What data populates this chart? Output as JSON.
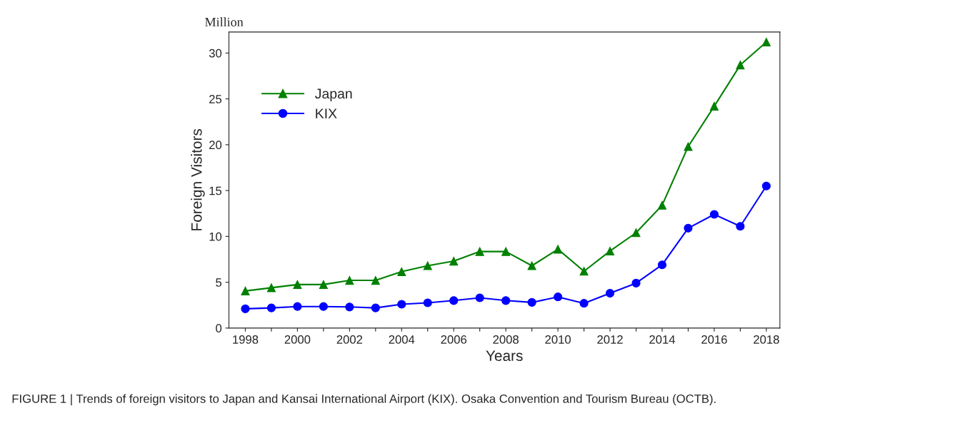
{
  "chart_data": {
    "type": "line",
    "xlabel": "Years",
    "ylabel": "Foreign Visitors",
    "x": [
      1998,
      1999,
      2000,
      2001,
      2002,
      2003,
      2004,
      2005,
      2006,
      2007,
      2008,
      2009,
      2010,
      2011,
      2012,
      2013,
      2014,
      2015,
      2016,
      2017,
      2018
    ],
    "series": [
      {
        "name": "Japan",
        "color": "#008000",
        "marker": "triangle",
        "values": [
          4.05,
          4.4,
          4.75,
          4.75,
          5.2,
          5.2,
          6.15,
          6.8,
          7.3,
          8.35,
          8.35,
          6.8,
          8.6,
          6.2,
          8.4,
          10.4,
          13.4,
          19.8,
          24.2,
          28.7,
          31.2
        ]
      },
      {
        "name": "KIX",
        "color": "#0000ff",
        "marker": "circle",
        "values": [
          2.1,
          2.2,
          2.35,
          2.35,
          2.3,
          2.2,
          2.6,
          2.75,
          3.0,
          3.3,
          3.0,
          2.8,
          3.4,
          2.7,
          3.8,
          4.9,
          6.9,
          10.9,
          12.4,
          11.1,
          15.5
        ]
      }
    ],
    "xlim": [
      1997.37,
      2018.52
    ],
    "ylim": [
      0,
      32.3
    ],
    "xticks": [
      1998,
      {
        "value": 1999,
        "label": null
      },
      2000,
      {
        "value": 2001,
        "label": null
      },
      2002,
      {
        "value": 2003,
        "label": null
      },
      2004,
      {
        "value": 2005,
        "label": null
      },
      2006,
      {
        "value": 2007,
        "label": null
      },
      2008,
      {
        "value": 2009,
        "label": null
      },
      2010,
      {
        "value": 2011,
        "label": null
      },
      2012,
      {
        "value": 2013,
        "label": null
      },
      2014,
      {
        "value": 2015,
        "label": null
      },
      2016,
      {
        "value": 2017,
        "label": null
      },
      2018
    ],
    "yticks": [
      0,
      5,
      10,
      15,
      20,
      25,
      30
    ],
    "grid": false,
    "legend": "top left",
    "line_style": "solid",
    "annotations": [
      "Million",
      "FIGURE 1 | Trends of foreign visitors to Japan and Kansai International Airport (KIX). Osaka Convention and Tourism Bureau (OCTB)."
    ]
  }
}
